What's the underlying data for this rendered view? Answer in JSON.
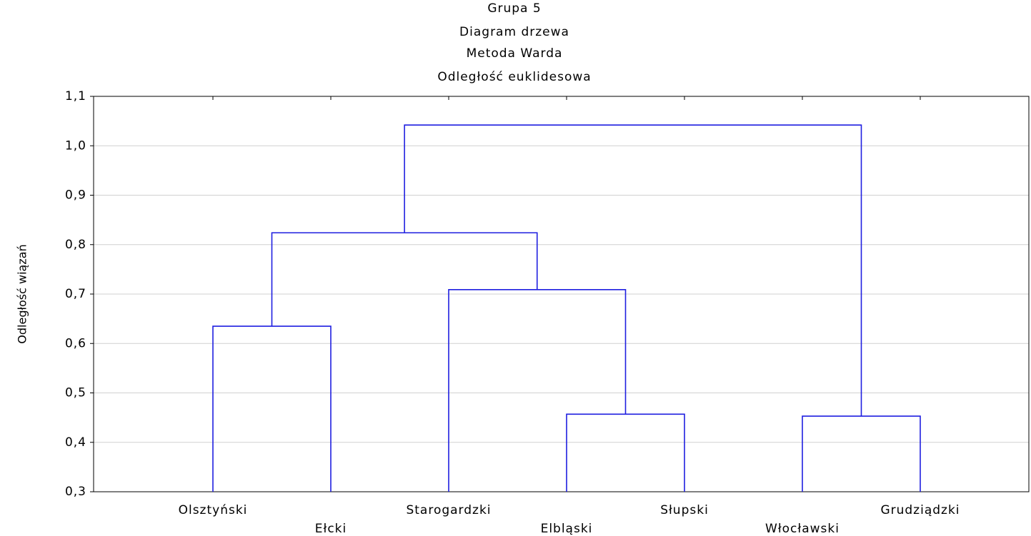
{
  "chart_data": {
    "type": "dendrogram",
    "title": [
      "Grupa 5",
      "Diagram drzewa",
      "Metoda Warda",
      "Odległość euklidesowa"
    ],
    "ylabel": "Odległość wiązań",
    "leaves": [
      "Olsztyński",
      "Ełcki",
      "Starogardzki",
      "Elbląski",
      "Słupski",
      "Włocławski",
      "Grudziądzki"
    ],
    "merges": [
      {
        "join": [
          0,
          1
        ],
        "height": 0.635
      },
      {
        "join": [
          3,
          4
        ],
        "height": 0.457
      },
      {
        "join": [
          5,
          6
        ],
        "height": 0.453
      },
      {
        "join": [
          2,
          8
        ],
        "height": 0.709
      },
      {
        "join": [
          7,
          10
        ],
        "height": 0.824
      },
      {
        "join": [
          11,
          9
        ],
        "height": 1.042
      }
    ],
    "color": "#1f1fe0",
    "ylim": [
      0.3,
      1.1
    ],
    "yticks": [
      {
        "value": 0.3,
        "label": "0,3"
      },
      {
        "value": 0.4,
        "label": "0,4"
      },
      {
        "value": 0.5,
        "label": "0,5"
      },
      {
        "value": 0.6,
        "label": "0,6"
      },
      {
        "value": 0.7,
        "label": "0,7"
      },
      {
        "value": 0.8,
        "label": "0,8"
      },
      {
        "value": 0.9,
        "label": "0,9"
      },
      {
        "value": 1.0,
        "label": "1,0"
      },
      {
        "value": 1.1,
        "label": "1,1"
      }
    ],
    "grid": true
  }
}
